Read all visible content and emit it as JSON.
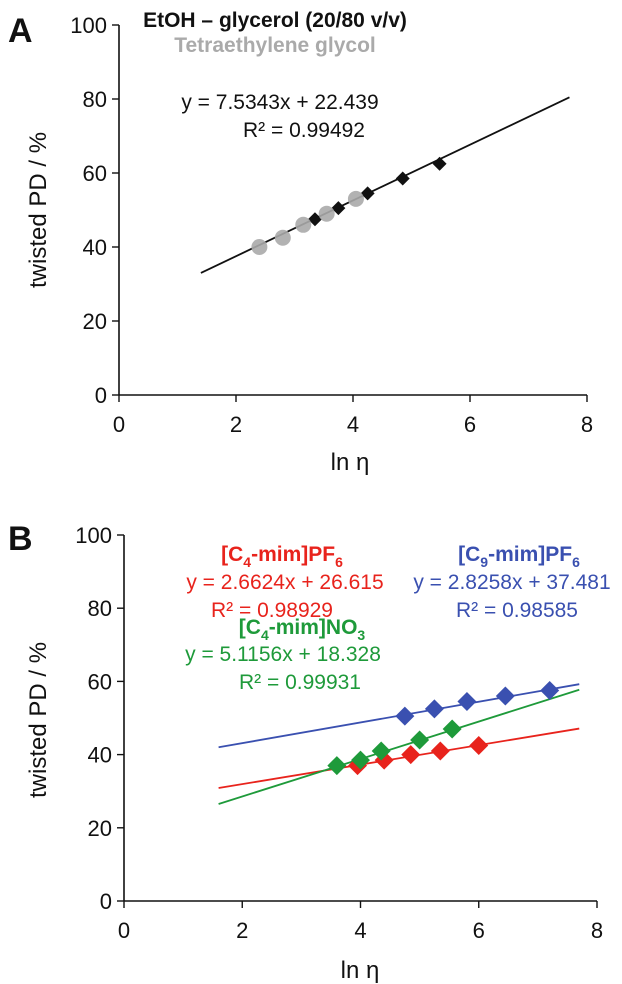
{
  "chart_data": [
    {
      "type": "scatter",
      "panel_label": "A",
      "xlabel": "ln η",
      "ylabel": "twisted PD / %",
      "xlim": [
        0,
        8
      ],
      "ylim": [
        0,
        100
      ],
      "xticks": [
        0,
        2,
        4,
        6,
        8
      ],
      "yticks": [
        0,
        20,
        40,
        60,
        80,
        100
      ],
      "grid": false,
      "series": [
        {
          "name": "EtOH – glycerol (20/80 v/v)",
          "color": "#111111",
          "marker": "diamond",
          "x": [
            3.35,
            3.75,
            4.25,
            4.85,
            5.48
          ],
          "y": [
            47.5,
            50.5,
            54.5,
            58.5,
            62.5
          ]
        },
        {
          "name": "Tetraethylene glycol",
          "color": "#aaaaaa",
          "marker": "circle",
          "x": [
            2.4,
            2.8,
            3.15,
            3.55,
            4.05
          ],
          "y": [
            40,
            42.5,
            46,
            49,
            53
          ]
        }
      ],
      "fits": [
        {
          "slope": 7.5343,
          "intercept": 22.439,
          "x_range": [
            1.4,
            7.7
          ],
          "color": "#111111"
        }
      ],
      "annotations": [
        {
          "equation": "y = 7.5343x + 22.439",
          "r2": "R² = 0.99492",
          "color": "#111111"
        }
      ]
    },
    {
      "type": "scatter",
      "panel_label": "B",
      "xlabel": "ln η",
      "ylabel": "twisted PD / %",
      "xlim": [
        0,
        8
      ],
      "ylim": [
        0,
        100
      ],
      "xticks": [
        0,
        2,
        4,
        6,
        8
      ],
      "yticks": [
        0,
        20,
        40,
        60,
        80,
        100
      ],
      "grid": false,
      "series": [
        {
          "name": "[C4-mim]PF6",
          "name_main": "[C",
          "name_sub": "4",
          "name_rest": "-mim]PF",
          "name_sub2": "6",
          "color": "#e8231c",
          "marker": "diamond",
          "x": [
            3.95,
            4.4,
            4.85,
            5.35,
            6.0
          ],
          "y": [
            37,
            38.5,
            40,
            41,
            42.5
          ]
        },
        {
          "name": "[C9-mim]PF6",
          "name_main": "[C",
          "name_sub": "9",
          "name_rest": "-mim]PF",
          "name_sub2": "6",
          "color": "#3a50b0",
          "marker": "diamond",
          "x": [
            4.75,
            5.25,
            5.8,
            6.45,
            7.2
          ],
          "y": [
            50.5,
            52.5,
            54.5,
            56,
            57.5
          ]
        },
        {
          "name": "[C4-mim]NO3",
          "name_main": "[C",
          "name_sub": "4",
          "name_rest": "-mim]NO",
          "name_sub2": "3",
          "color": "#1e9a3a",
          "marker": "diamond",
          "x": [
            3.6,
            4.0,
            4.35,
            5.0,
            5.55
          ],
          "y": [
            37,
            38.5,
            41,
            44,
            47
          ]
        }
      ],
      "fits": [
        {
          "slope": 2.6624,
          "intercept": 26.615,
          "x_range": [
            1.6,
            7.7
          ],
          "color": "#e8231c"
        },
        {
          "slope": 2.8258,
          "intercept": 37.481,
          "x_range": [
            1.6,
            7.7
          ],
          "color": "#3a50b0"
        },
        {
          "slope": 5.1156,
          "intercept": 18.328,
          "x_range": [
            1.6,
            7.7
          ],
          "color": "#1e9a3a"
        }
      ],
      "annotations": [
        {
          "equation": "y = 2.6624x + 26.615",
          "r2": "R² = 0.98929",
          "color": "#e8231c"
        },
        {
          "equation": "y = 2.8258x + 37.481",
          "r2": "R² = 0.98585",
          "color": "#3a50b0"
        },
        {
          "equation": "y = 5.1156x + 18.328",
          "r2": "R² = 0.99931",
          "color": "#1e9a3a"
        }
      ]
    }
  ]
}
